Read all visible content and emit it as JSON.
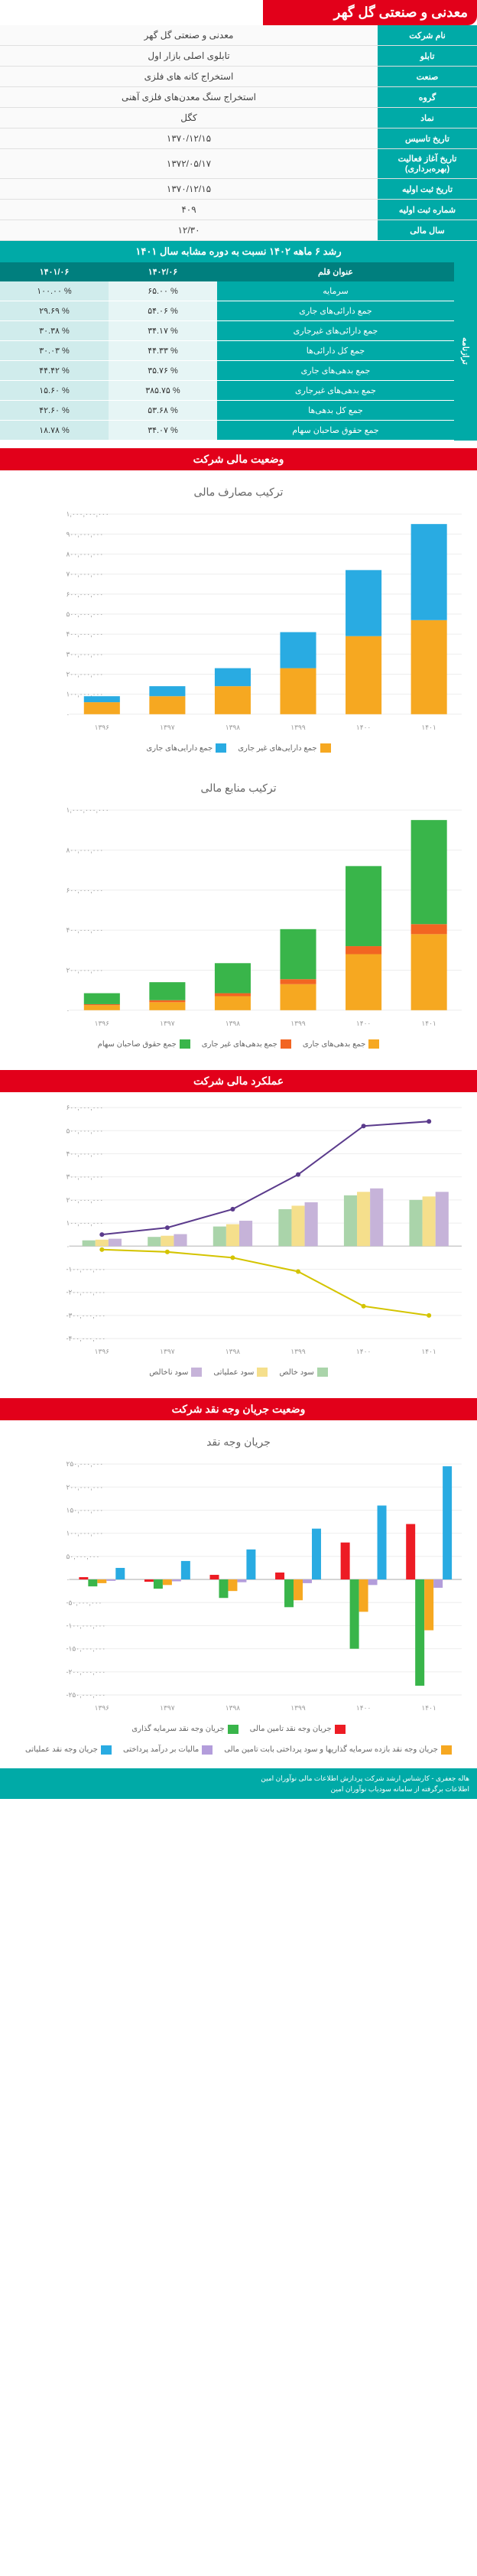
{
  "header": {
    "title": "معدنی و صنعتی گل گهر"
  },
  "info": {
    "rows": [
      {
        "label": "نام شرکت",
        "value": "معدنی و صنعتی گل گهر"
      },
      {
        "label": "تابلو",
        "value": "تابلوی اصلی بازار اول"
      },
      {
        "label": "صنعت",
        "value": "استخراج کانه های فلزی"
      },
      {
        "label": "گروه",
        "value": "استخراج سنگ معدن‌های فلزی آهنی"
      },
      {
        "label": "نماد",
        "value": "کگل"
      },
      {
        "label": "تاریخ تاسیس",
        "value": "۱۳۷۰/۱۲/۱۵"
      },
      {
        "label": "تاریخ آغاز فعالیت (بهره‌برداری)",
        "value": "۱۳۷۲/۰۵/۱۷"
      },
      {
        "label": "تاریخ ثبت اولیه",
        "value": "۱۳۷۰/۱۲/۱۵"
      },
      {
        "label": "شماره ثبت اولیه",
        "value": "۴۰۹"
      },
      {
        "label": "سال مالی",
        "value": "۱۲/۳۰"
      }
    ]
  },
  "growth": {
    "title": "رشد ۶ ماهه ۱۴۰۲ نسبت به دوره مشابه سال ۱۴۰۱",
    "side_label": "ترازنامه",
    "col_headers": [
      "عنوان قلم",
      "۱۴۰۲/۰۶",
      "۱۴۰۱/۰۶"
    ],
    "rows": [
      {
        "label": "سرمایه",
        "a": "% ۶۵.۰۰",
        "b": "% ۱۰۰.۰۰"
      },
      {
        "label": "جمع دارائی‌های جاری",
        "a": "% ۵۴.۰۶",
        "b": "% ۲۹.۶۹"
      },
      {
        "label": "جمع دارائی‌های غیرجاری",
        "a": "% ۳۴.۱۷",
        "b": "% ۳۰.۳۸"
      },
      {
        "label": "جمع کل دارائی‌ها",
        "a": "% ۴۴.۳۳",
        "b": "% ۳۰.۰۳"
      },
      {
        "label": "جمع بدهی‌های جاری",
        "a": "% ۳۵.۷۶",
        "b": "% ۴۴.۴۲"
      },
      {
        "label": "جمع بدهی‌های غیرجاری",
        "a": "% ۳۸۵.۷۵",
        "b": "% ۱۵.۶۰"
      },
      {
        "label": "جمع کل بدهی‌ها",
        "a": "% ۵۳.۶۸",
        "b": "% ۴۲.۶۰"
      },
      {
        "label": "جمع حقوق صاحبان سهام",
        "a": "% ۳۴.۰۷",
        "b": "% ۱۸.۷۸"
      }
    ]
  },
  "chart1": {
    "section_title": "وضعیت مالی شرکت",
    "title": "ترکیب مصارف مالی",
    "type": "stacked-bar",
    "categories": [
      "۱۳۹۶",
      "۱۳۹۷",
      "۱۳۹۸",
      "۱۳۹۹",
      "۱۴۰۰",
      "۱۴۰۱"
    ],
    "ylim": [
      0,
      1000000000
    ],
    "ytick_step": 100000000,
    "ytick_labels": [
      "۰",
      "۱۰۰,۰۰۰,۰۰۰",
      "۲۰۰,۰۰۰,۰۰۰",
      "۳۰۰,۰۰۰,۰۰۰",
      "۴۰۰,۰۰۰,۰۰۰",
      "۵۰۰,۰۰۰,۰۰۰",
      "۶۰۰,۰۰۰,۰۰۰",
      "۷۰۰,۰۰۰,۰۰۰",
      "۸۰۰,۰۰۰,۰۰۰",
      "۹۰۰,۰۰۰,۰۰۰",
      "۱,۰۰۰,۰۰۰,۰۰۰"
    ],
    "series": [
      {
        "name": "جمع دارایی‌های غیر جاری",
        "color": "#f6a821",
        "values": [
          60000000,
          90000000,
          140000000,
          230000000,
          390000000,
          470000000
        ]
      },
      {
        "name": "جمع دارایی‌های جاری",
        "color": "#29abe2",
        "values": [
          30000000,
          50000000,
          90000000,
          180000000,
          330000000,
          480000000
        ]
      }
    ],
    "bar_width": 0.55,
    "background_color": "#ffffff",
    "grid_color": "#eeeeee",
    "label_fontsize": 9
  },
  "chart2": {
    "title": "ترکیب منابع مالی",
    "type": "stacked-bar",
    "categories": [
      "۱۳۹۶",
      "۱۳۹۷",
      "۱۳۹۸",
      "۱۳۹۹",
      "۱۴۰۰",
      "۱۴۰۱"
    ],
    "ylim": [
      0,
      1000000000
    ],
    "ytick_step": 200000000,
    "ytick_labels": [
      "۰",
      "۲۰۰,۰۰۰,۰۰۰",
      "۴۰۰,۰۰۰,۰۰۰",
      "۶۰۰,۰۰۰,۰۰۰",
      "۸۰۰,۰۰۰,۰۰۰",
      "۱,۰۰۰,۰۰۰,۰۰۰"
    ],
    "series": [
      {
        "name": "جمع بدهی‌های جاری",
        "color": "#f6a821",
        "values": [
          25000000,
          40000000,
          70000000,
          130000000,
          280000000,
          380000000
        ]
      },
      {
        "name": "جمع بدهی‌های غیر جاری",
        "color": "#f26522",
        "values": [
          5000000,
          10000000,
          15000000,
          25000000,
          40000000,
          50000000
        ]
      },
      {
        "name": "جمع حقوق صاحبان سهام",
        "color": "#39b54a",
        "values": [
          55000000,
          90000000,
          150000000,
          250000000,
          400000000,
          520000000
        ]
      }
    ],
    "bar_width": 0.55,
    "background_color": "#ffffff",
    "grid_color": "#eeeeee",
    "label_fontsize": 9
  },
  "chart3": {
    "section_title": "عملکرد مالی شرکت",
    "type": "bar-line",
    "categories": [
      "۱۳۹۶",
      "۱۳۹۷",
      "۱۳۹۸",
      "۱۳۹۹",
      "۱۴۰۰",
      "۱۴۰۱"
    ],
    "ylim": [
      -400000000,
      600000000
    ],
    "ytick_step": 100000000,
    "ytick_labels": [
      "۴۰۰,۰۰۰,۰۰۰-",
      "۳۰۰,۰۰۰,۰۰۰-",
      "۲۰۰,۰۰۰,۰۰۰-",
      "۱۰۰,۰۰۰,۰۰۰-",
      "۰",
      "۱۰۰,۰۰۰,۰۰۰",
      "۲۰۰,۰۰۰,۰۰۰",
      "۳۰۰,۰۰۰,۰۰۰",
      "۴۰۰,۰۰۰,۰۰۰",
      "۵۰۰,۰۰۰,۰۰۰",
      "۶۰۰,۰۰۰,۰۰۰"
    ],
    "bars": [
      {
        "name": "سود خالص",
        "color": "#aad4aa",
        "values": [
          25000000,
          40000000,
          85000000,
          160000000,
          220000000,
          200000000
        ]
      },
      {
        "name": "سود عملیاتی",
        "color": "#f5df8c",
        "values": [
          28000000,
          45000000,
          95000000,
          175000000,
          235000000,
          215000000
        ]
      },
      {
        "name": "سود ناخالص",
        "color": "#c6b3d9",
        "values": [
          32000000,
          52000000,
          110000000,
          190000000,
          250000000,
          235000000
        ]
      }
    ],
    "lines": [
      {
        "name": "line1",
        "color": "#5b3b8c",
        "values": [
          50000000,
          80000000,
          160000000,
          310000000,
          520000000,
          540000000
        ]
      },
      {
        "name": "line2",
        "color": "#d4c400",
        "values": [
          -15000000,
          -25000000,
          -50000000,
          -110000000,
          -260000000,
          -300000000
        ]
      }
    ],
    "bar_width": 0.2,
    "background_color": "#ffffff",
    "grid_color": "#eeeeee",
    "label_fontsize": 9
  },
  "chart4": {
    "section_title": "وضعیت جریان وجه نقد شرکت",
    "title": "جریان وجه نقد",
    "type": "grouped-bar",
    "categories": [
      "۱۳۹۶",
      "۱۳۹۷",
      "۱۳۹۸",
      "۱۳۹۹",
      "۱۴۰۰",
      "۱۴۰۱"
    ],
    "ylim": [
      -250000000,
      250000000
    ],
    "ytick_step": 50000000,
    "ytick_labels": [
      "۲۵۰,۰۰۰,۰۰۰-",
      "۲۰۰,۰۰۰,۰۰۰-",
      "۱۵۰,۰۰۰,۰۰۰-",
      "۱۰۰,۰۰۰,۰۰۰-",
      "۵۰,۰۰۰,۰۰۰-",
      "۰",
      "۵۰,۰۰۰,۰۰۰",
      "۱۰۰,۰۰۰,۰۰۰",
      "۱۵۰,۰۰۰,۰۰۰",
      "۲۰۰,۰۰۰,۰۰۰",
      "۲۵۰,۰۰۰,۰۰۰"
    ],
    "series": [
      {
        "name": "جریان وجه نقد تامین مالی",
        "color": "#ed1c24",
        "values": [
          5000000,
          -5000000,
          10000000,
          15000000,
          80000000,
          120000000
        ]
      },
      {
        "name": "جریان وجه نقد سرمایه گذاری",
        "color": "#39b54a",
        "values": [
          -15000000,
          -20000000,
          -40000000,
          -60000000,
          -150000000,
          -230000000
        ]
      },
      {
        "name": "جریان وجه نقد بازده سرمایه گذاریها و سود پرداختی بابت تامین مالی",
        "color": "#f6a821",
        "values": [
          -8000000,
          -12000000,
          -25000000,
          -45000000,
          -70000000,
          -110000000
        ]
      },
      {
        "name": "مالیات بر درآمد پرداختی",
        "color": "#b39ddb",
        "values": [
          -3000000,
          -4000000,
          -6000000,
          -8000000,
          -12000000,
          -18000000
        ]
      },
      {
        "name": "جریان وجه نقد عملیاتی",
        "color": "#29abe2",
        "values": [
          25000000,
          40000000,
          65000000,
          110000000,
          160000000,
          245000000
        ]
      }
    ],
    "bar_width": 0.14,
    "background_color": "#ffffff",
    "grid_color": "#eeeeee",
    "label_fontsize": 9
  },
  "footer": {
    "line1": "هاله جعفری - کارشناس ارشد شرکت پردازش اطلاعات مالی نوآوران امین",
    "line2": "اطلاعات برگرفته از سامانه سودیاب نوآوران امین"
  }
}
